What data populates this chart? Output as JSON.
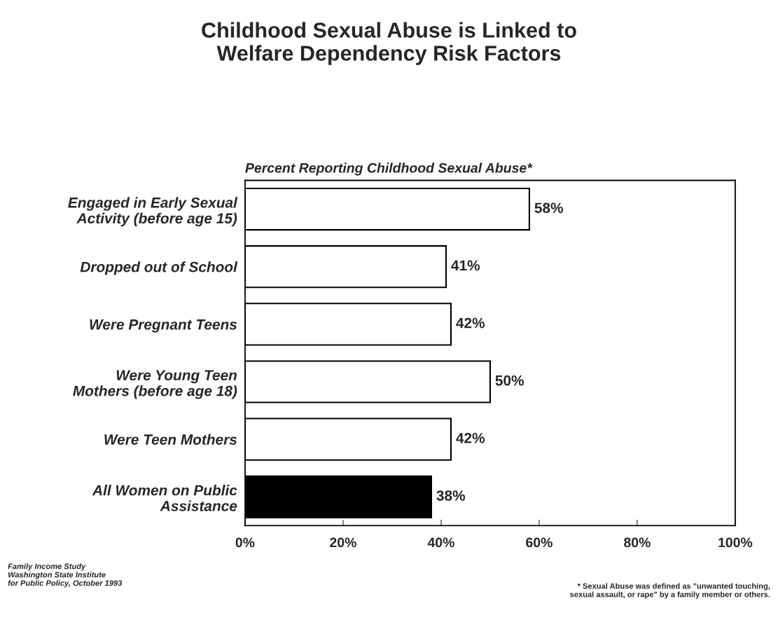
{
  "chart_data": {
    "type": "bar",
    "orientation": "horizontal",
    "title": "Childhood Sexual Abuse is Linked to\nWelfare Dependency Risk Factors",
    "subtitle": "Percent Reporting Childhood Sexual Abuse*",
    "categories": [
      "Engaged in Early Sexual\nActivity (before age 15)",
      "Dropped out of School",
      "Were Pregnant Teens",
      "Were Young Teen\nMothers (before age 18)",
      "Were Teen Mothers",
      "All Women on Public\nAssistance"
    ],
    "values": [
      58,
      41,
      42,
      50,
      42,
      38
    ],
    "colors": [
      "#ffffff",
      "#ffffff",
      "#ffffff",
      "#ffffff",
      "#ffffff",
      "#000000"
    ],
    "value_labels": [
      "58%",
      "41%",
      "42%",
      "50%",
      "42%",
      "38%"
    ],
    "xlim": [
      0,
      100
    ],
    "xticks": [
      {
        "value": 0,
        "label": "0%"
      },
      {
        "value": 20,
        "label": "20%"
      },
      {
        "value": 40,
        "label": "40%"
      },
      {
        "value": 60,
        "label": "60%"
      },
      {
        "value": 80,
        "label": "80%"
      },
      {
        "value": 100,
        "label": "100%"
      }
    ],
    "grid": false,
    "annotations": [
      "Family Income Study\nWashington State Institute\nfor Public Policy, October 1993",
      "* Sexual Abuse was defined as \"unwanted touching,\nsexual assault, or rape\" by a family member or others."
    ]
  }
}
